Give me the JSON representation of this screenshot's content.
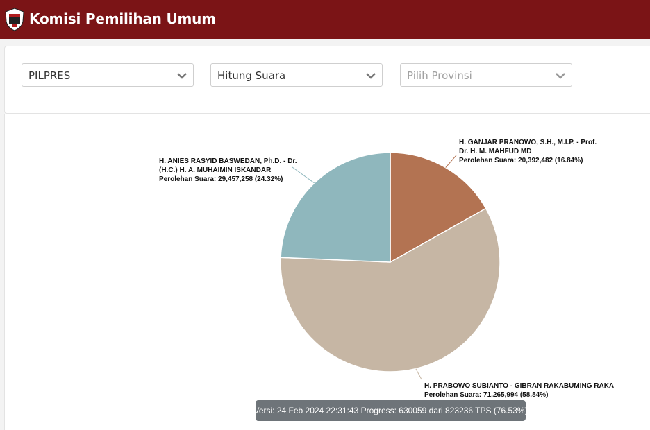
{
  "header": {
    "title": "Komisi Pemilihan Umum",
    "logo_icon": "kpu-logo-icon"
  },
  "filters": [
    {
      "value": "PILPRES",
      "placeholder": false
    },
    {
      "value": "Hitung Suara",
      "placeholder": false
    },
    {
      "value": "Pilih Provinsi",
      "placeholder": true
    }
  ],
  "chart_data": {
    "type": "pie",
    "slices": [
      {
        "label_line1": "H. GANJAR PRANOWO, S.H., M.I.P. - Prof.",
        "label_line2": "Dr. H. M. MAHFUD MD",
        "votes_text": "Perolehan Suara: 20,392,482 (16.84%)",
        "value": 20392482,
        "percent": 16.84,
        "color": "#b37352"
      },
      {
        "label_line1": "H. PRABOWO SUBIANTO - GIBRAN RAKABUMING RAKA",
        "label_line2": "",
        "votes_text": "Perolehan Suara: 71,265,994 (58.84%)",
        "value": 71265994,
        "percent": 58.84,
        "color": "#c6b6a4"
      },
      {
        "label_line1": "H. ANIES RASYID BASWEDAN, Ph.D. - Dr.",
        "label_line2": "(H.C.) H. A. MUHAIMIN ISKANDAR",
        "votes_text": "Perolehan Suara: 29,457,258 (24.32%)",
        "value": 29457258,
        "percent": 24.32,
        "color": "#8fb7bd"
      }
    ]
  },
  "version_text": "Versi: 24 Feb 2024 22:31:43 Progress: 630059 dari 823236 TPS (76.53%)"
}
